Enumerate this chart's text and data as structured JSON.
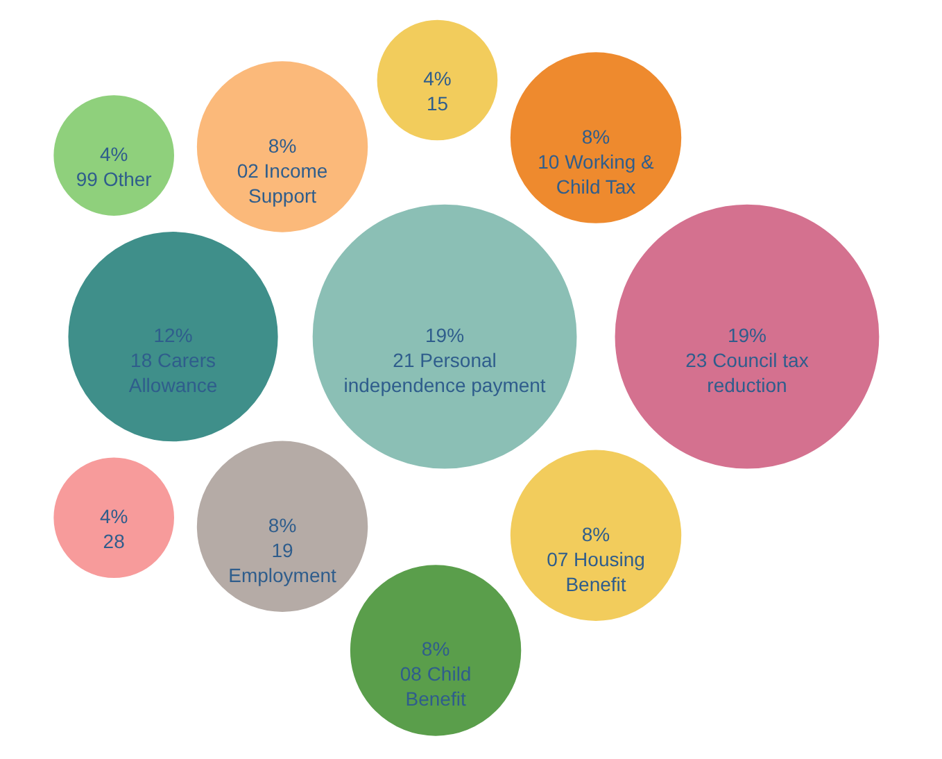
{
  "chart_data": {
    "type": "other",
    "categories": [
      "21 Personal\nindependence payment",
      "23 Council tax\nreduction",
      "18 Carers\nAllowance",
      "19\nEmployment",
      "02 Income\nSupport",
      "07 Housing\nBenefit",
      "10 Working &\nChild Tax",
      "08 Child\nBenefit",
      "15",
      "28",
      "99 Other"
    ],
    "values": [
      19,
      19,
      12,
      8,
      8,
      8,
      8,
      8,
      4,
      4,
      4
    ],
    "value_labels": [
      "19%",
      "19%",
      "12%",
      "8%",
      "8%",
      "8%",
      "8%",
      "8%",
      "4%",
      "4%",
      "4%"
    ],
    "colors": [
      "#8bbfb5",
      "#d4718f",
      "#3f8f8a",
      "#b5aba6",
      "#fbb97a",
      "#f2cc5c",
      "#ee8a2e",
      "#5a9e4b",
      "#f2cc5c",
      "#f79b9b",
      "#8fd07c"
    ]
  }
}
